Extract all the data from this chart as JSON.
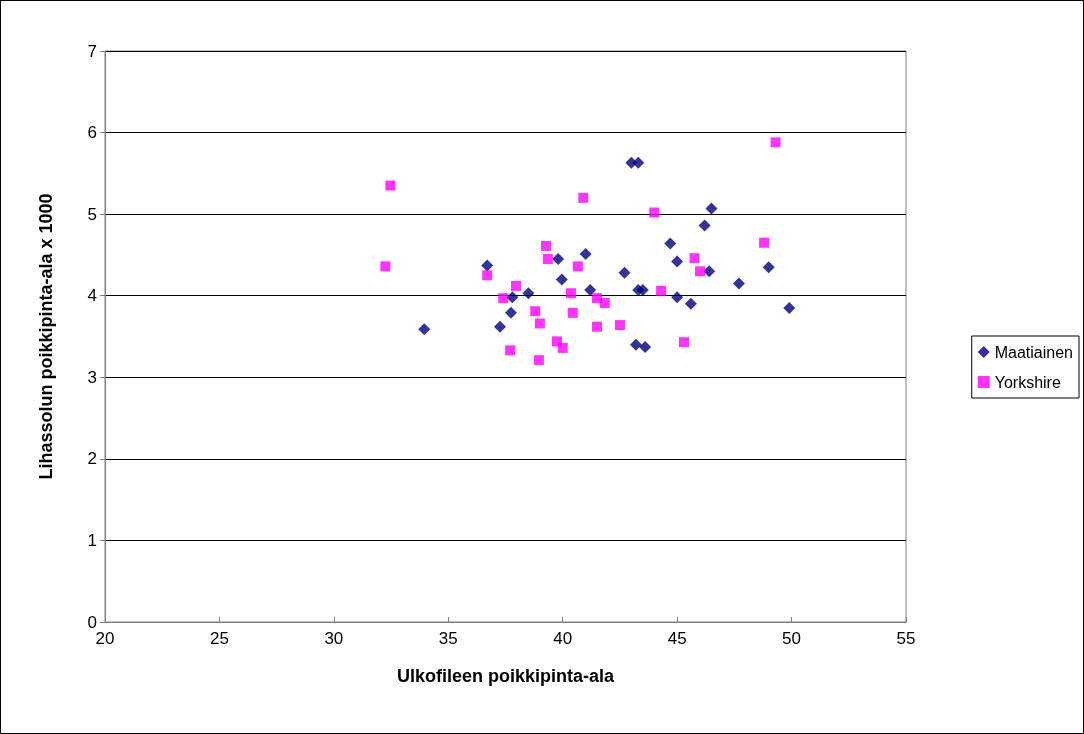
{
  "chart_data": {
    "type": "scatter",
    "xlabel": "Ulkofileen poikkipinta-ala",
    "ylabel": "Lihassolun poikkipinta-ala x 1000",
    "xlim": [
      20,
      55
    ],
    "xticks": [
      20,
      25,
      30,
      35,
      40,
      45,
      50,
      55
    ],
    "ylim": [
      0,
      7
    ],
    "yticks": [
      0,
      1,
      2,
      3,
      4,
      5,
      6,
      7
    ],
    "grid": "y",
    "legend": "right",
    "series": [
      {
        "name": "Maatiainen",
        "color": "#000080",
        "marker": "diamond",
        "x": [
          33.95,
          36.7,
          37.26,
          37.74,
          37.8,
          38.5,
          39.8,
          39.96,
          41.0,
          41.2,
          42.7,
          43.0,
          43.3,
          43.2,
          43.3,
          43.5,
          43.6,
          44.7,
          45.0,
          45.0,
          45.6,
          46.2,
          46.4,
          46.5,
          47.7,
          49.0,
          49.9
        ],
        "values": [
          3.59,
          4.37,
          3.62,
          3.79,
          3.98,
          4.03,
          4.45,
          4.2,
          4.51,
          4.07,
          4.28,
          5.63,
          5.63,
          3.4,
          4.07,
          4.07,
          3.37,
          4.64,
          3.98,
          4.42,
          3.9,
          4.86,
          4.3,
          5.07,
          4.15,
          4.35,
          3.85
        ]
      },
      {
        "name": "Yorkshire",
        "color": "#ff00ff",
        "marker": "square",
        "x": [
          32.25,
          32.47,
          36.7,
          37.4,
          37.7,
          37.96,
          38.8,
          38.96,
          39.0,
          39.27,
          39.35,
          39.75,
          40.0,
          40.36,
          40.44,
          40.66,
          40.9,
          41.5,
          41.5,
          41.84,
          42.5,
          44.0,
          44.3,
          45.3,
          45.76,
          46.0,
          48.8,
          49.3
        ],
        "values": [
          4.36,
          5.35,
          4.25,
          3.97,
          3.33,
          4.12,
          3.81,
          3.21,
          3.66,
          4.61,
          4.45,
          3.44,
          3.36,
          4.03,
          3.79,
          4.36,
          5.2,
          3.97,
          3.62,
          3.91,
          3.64,
          5.02,
          4.06,
          3.43,
          4.46,
          4.3,
          4.65,
          5.88
        ]
      }
    ]
  }
}
